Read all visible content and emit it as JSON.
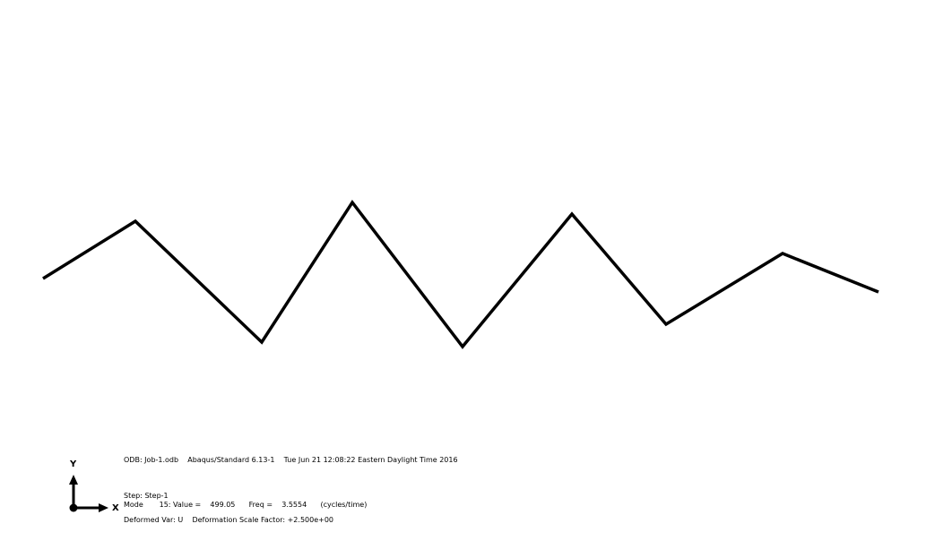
{
  "model": {
    "line_color": "#000000",
    "background_color": "#ffffff",
    "deformed_shape": {
      "description_visible": false
    }
  },
  "triad": {
    "y_label": "Y",
    "x_label": "X",
    "color": "#000000"
  },
  "info": {
    "odb_line": "ODB: Job-1.odb    Abaqus/Standard 6.13-1    Tue Jun 21 12:08:22 Eastern Daylight Time 2016",
    "step_line": "Step: Step-1",
    "mode_line": "Mode       15: Value =    499.05      Freq =    3.5554      (cycles/time)",
    "deformed_line": "Deformed Var: U    Deformation Scale Factor: +2.500e+00"
  }
}
